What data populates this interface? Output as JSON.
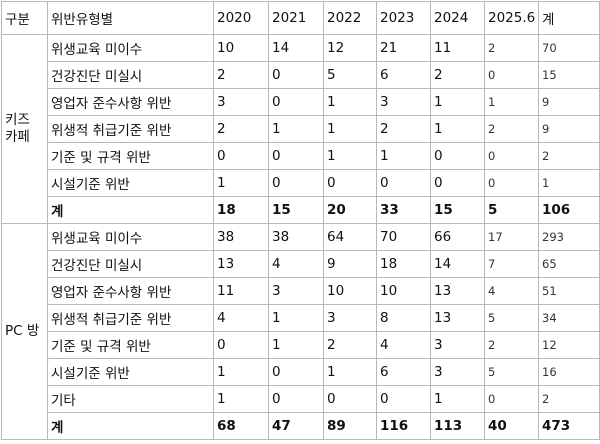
{
  "table": {
    "header": [
      "구분",
      "위반유형별",
      "2020",
      "2021",
      "2022",
      "2023",
      "2024",
      "2025.6",
      "계"
    ],
    "groups": [
      {
        "label": "키즈 카페",
        "rows": [
          [
            "위생교육 미이수",
            10,
            14,
            12,
            21,
            11,
            2,
            70
          ],
          [
            "건강진단 미실시",
            2,
            0,
            5,
            6,
            2,
            0,
            15
          ],
          [
            "영업자 준수사항 위반",
            3,
            0,
            1,
            3,
            1,
            1,
            9
          ],
          [
            "위생적 취급기준 위반",
            2,
            1,
            1,
            2,
            1,
            2,
            9
          ],
          [
            "기준 및 규격 위반",
            0,
            0,
            1,
            1,
            0,
            0,
            2
          ],
          [
            "시설기준 위반",
            1,
            0,
            0,
            0,
            0,
            0,
            1
          ],
          [
            "계",
            18,
            15,
            20,
            33,
            15,
            5,
            106
          ]
        ]
      },
      {
        "label": "PC 방",
        "rows": [
          [
            "위생교육 미이수",
            38,
            38,
            64,
            70,
            66,
            17,
            293
          ],
          [
            "건강진단 미실시",
            13,
            4,
            9,
            18,
            14,
            7,
            65
          ],
          [
            "영업자 준수사항 위반",
            11,
            3,
            10,
            10,
            13,
            4,
            51
          ],
          [
            "위생적 취급기준 위반",
            4,
            1,
            3,
            8,
            13,
            5,
            34
          ],
          [
            "기준 및 규격 위반",
            0,
            1,
            2,
            4,
            3,
            2,
            12
          ],
          [
            "시설기준 위반",
            1,
            0,
            1,
            6,
            3,
            5,
            16
          ],
          [
            "기타",
            1,
            0,
            0,
            0,
            1,
            0,
            2
          ],
          [
            "계",
            68,
            47,
            89,
            116,
            113,
            40,
            473
          ]
        ]
      }
    ]
  }
}
